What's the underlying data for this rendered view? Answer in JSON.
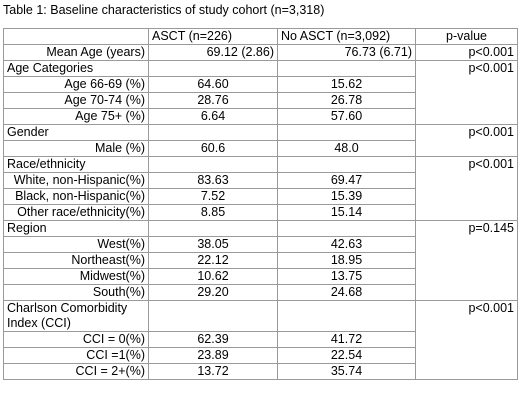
{
  "caption": "Table 1: Baseline characteristics of study cohort (n=3,318)",
  "header": {
    "blank": "",
    "asct": "ASCT (n=226)",
    "no_asct": "No ASCT (n=3,092)",
    "pvalue": "p-value"
  },
  "rows": [
    {
      "label": "Mean Age (years)",
      "asct": "69.12 (2.86)",
      "no_asct": "76.73 (6.71)",
      "pvalue": "p<0.001"
    },
    {
      "label": "Age Categories",
      "asct": "",
      "no_asct": "",
      "pvalue": "p<0.001"
    },
    {
      "label": "Age 66-69 (%)",
      "asct": "64.60",
      "no_asct": "15.62",
      "pvalue": ""
    },
    {
      "label": "Age 70-74 (%)",
      "asct": "28.76",
      "no_asct": "26.78",
      "pvalue": ""
    },
    {
      "label": "Age 75+ (%)",
      "asct": "6.64",
      "no_asct": "57.60",
      "pvalue": ""
    },
    {
      "label": "Gender",
      "asct": "",
      "no_asct": "",
      "pvalue": "p<0.001"
    },
    {
      "label": "Male (%)",
      "asct": "60.6",
      "no_asct": "48.0",
      "pvalue": ""
    },
    {
      "label": "Race/ethnicity",
      "asct": "",
      "no_asct": "",
      "pvalue": "p<0.001"
    },
    {
      "label": "White, non-Hispanic(%)",
      "asct": "83.63",
      "no_asct": "69.47",
      "pvalue": ""
    },
    {
      "label": "Black, non-Hispanic(%)",
      "asct": "7.52",
      "no_asct": "15.39",
      "pvalue": ""
    },
    {
      "label": "Other race/ethnicity(%)",
      "asct": "8.85",
      "no_asct": "15.14",
      "pvalue": ""
    },
    {
      "label": "Region",
      "asct": "",
      "no_asct": "",
      "pvalue": "p=0.145"
    },
    {
      "label": "West(%)",
      "asct": "38.05",
      "no_asct": "42.63",
      "pvalue": ""
    },
    {
      "label": "Northeast(%)",
      "asct": "22.12",
      "no_asct": "18.95",
      "pvalue": ""
    },
    {
      "label": "Midwest(%)",
      "asct": "10.62",
      "no_asct": "13.75",
      "pvalue": ""
    },
    {
      "label": "South(%)",
      "asct": "29.20",
      "no_asct": "24.68",
      "pvalue": ""
    },
    {
      "label": "Charlson Comorbidity Index (CCI)",
      "asct": "",
      "no_asct": "",
      "pvalue": "p<0.001"
    },
    {
      "label": "CCI = 0(%)",
      "asct": "62.39",
      "no_asct": "41.72",
      "pvalue": ""
    },
    {
      "label": "CCI =1(%)",
      "asct": "23.89",
      "no_asct": "22.54",
      "pvalue": ""
    },
    {
      "label": "CCI = 2+(%)",
      "asct": "13.72",
      "no_asct": "35.74",
      "pvalue": ""
    }
  ]
}
